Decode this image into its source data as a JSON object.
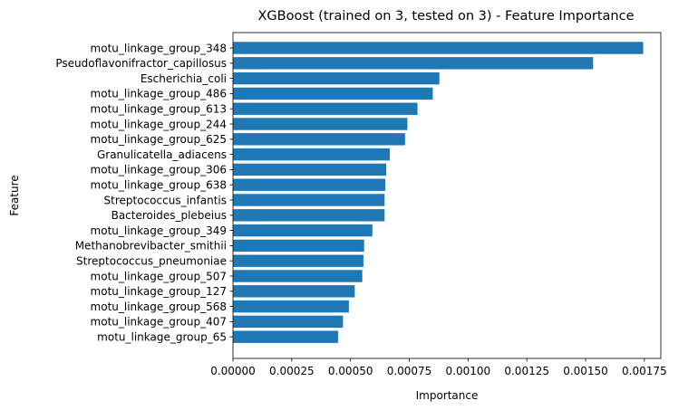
{
  "chart_data": {
    "type": "bar",
    "orientation": "horizontal",
    "title": "XGBoost (trained on 3, tested on 3) -  Feature Importance",
    "xlabel": "Importance",
    "ylabel": "Feature",
    "bar_color": "#1f77b4",
    "grid": false,
    "xlim": [
      0,
      0.00182
    ],
    "xticks": [
      0,
      0.00025,
      0.0005,
      0.00075,
      0.001,
      0.00125,
      0.0015,
      0.00175
    ],
    "xtick_labels": [
      "0.00000",
      "0.00025",
      "0.00050",
      "0.00075",
      "0.00100",
      "0.00125",
      "0.00150",
      "0.00175"
    ],
    "categories": [
      "motu_linkage_group_348",
      "Pseudoflavonifractor_capillosus",
      "Escherichia_coli",
      "motu_linkage_group_486",
      "motu_linkage_group_613",
      "motu_linkage_group_244",
      "motu_linkage_group_625",
      "Granulicatella_adiacens",
      "motu_linkage_group_306",
      "motu_linkage_group_638",
      "Streptococcus_infantis",
      "Bacteroides_plebeius",
      "motu_linkage_group_349",
      "Methanobrevibacter_smithii",
      "Streptococcus_pneumoniae",
      "motu_linkage_group_507",
      "motu_linkage_group_127",
      "motu_linkage_group_568",
      "motu_linkage_group_407",
      "motu_linkage_group_65"
    ],
    "values": [
      0.001745,
      0.001532,
      0.000878,
      0.00085,
      0.000785,
      0.000742,
      0.000732,
      0.000667,
      0.000652,
      0.000648,
      0.000645,
      0.000645,
      0.000593,
      0.000558,
      0.000555,
      0.00055,
      0.000518,
      0.000493,
      0.000468,
      0.000447
    ]
  }
}
